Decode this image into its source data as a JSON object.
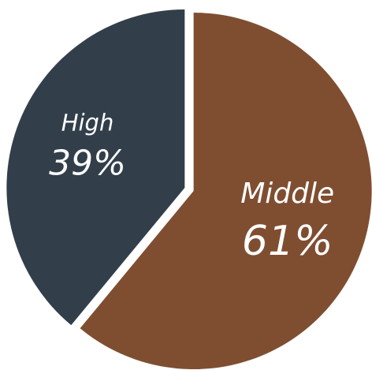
{
  "chart_data": {
    "type": "pie",
    "title": "",
    "slices": [
      {
        "label": "Middle",
        "value": 61,
        "display": "61%",
        "color": "#7f4e31"
      },
      {
        "label": "High",
        "value": 39,
        "display": "39%",
        "color": "#323f4b"
      }
    ],
    "legend": "none",
    "labels_inside": true
  }
}
